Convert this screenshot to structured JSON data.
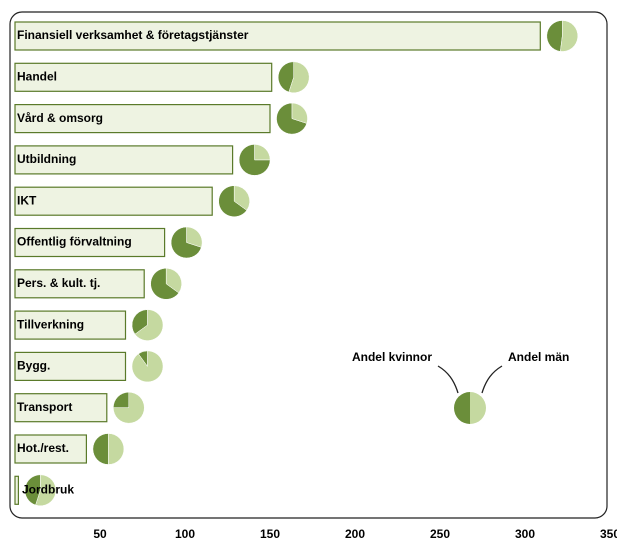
{
  "chart_data": {
    "type": "bar-pie",
    "categories": [
      "Finansiell verksamhet & företagstjänster",
      "Handel",
      "Vård & omsorg",
      "Utbildning",
      "IKT",
      "Offentlig förvaltning",
      "Pers. & kult. tj.",
      "Tillverkning",
      "Bygg.",
      "Transport",
      "Hot./rest.",
      "Jordbruk"
    ],
    "values": [
      309,
      151,
      150,
      128,
      116,
      88,
      76,
      65,
      65,
      54,
      42,
      2
    ],
    "color": "#eef3e2",
    "series": [
      {
        "name": "Andel kvinnor",
        "color": "#6b8e3a",
        "values": [
          48,
          45,
          70,
          75,
          65,
          70,
          65,
          35,
          10,
          25,
          50,
          45
        ]
      },
      {
        "name": "Andel män",
        "color": "#c5d9a0",
        "values": [
          52,
          55,
          30,
          25,
          35,
          30,
          35,
          65,
          90,
          75,
          50,
          55
        ]
      }
    ],
    "xlim": [
      0,
      350
    ],
    "xticks": [
      50,
      100,
      150,
      200,
      250,
      300,
      350
    ]
  }
}
